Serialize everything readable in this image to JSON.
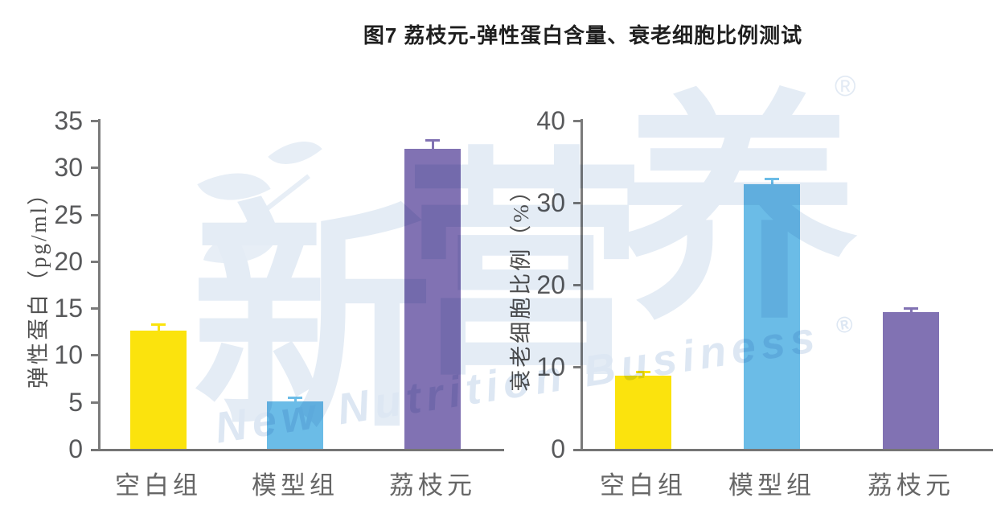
{
  "title": "图7 荔枝元-弹性蛋白含量、衰老细胞比例测试",
  "watermark": {
    "chars": [
      "新",
      "营",
      "养"
    ],
    "registered": "®",
    "subtitle": "New Nutrition Business",
    "logo_color": "#E4ECF5",
    "text_color": "#DDE7F3"
  },
  "chart_data": [
    {
      "type": "bar",
      "title": "",
      "ylabel": "弹性蛋白（pg/ml）",
      "xlabel": "",
      "categories": [
        "空白组",
        "模型组",
        "荔枝元"
      ],
      "values": [
        12.6,
        5.1,
        32.0
      ],
      "errors": [
        0.7,
        0.35,
        0.9
      ],
      "bar_colors": [
        "#FBE30D",
        "#6BBCE7",
        "#8172B3"
      ],
      "ylim": [
        0,
        35
      ],
      "yticks": [
        0,
        5,
        10,
        15,
        20,
        25,
        30,
        35
      ],
      "grid": false,
      "legend_position": "none"
    },
    {
      "type": "bar",
      "title": "",
      "ylabel": "衰老细胞比例（%）",
      "xlabel": "",
      "categories": [
        "空白组",
        "模型组",
        "荔枝元"
      ],
      "values": [
        8.9,
        32.3,
        16.7
      ],
      "errors": [
        0.5,
        0.6,
        0.5
      ],
      "bar_colors": [
        "#FBE30D",
        "#6BBCE7",
        "#8172B3"
      ],
      "ylim": [
        0,
        40
      ],
      "yticks": [
        0,
        10,
        20,
        30,
        40
      ],
      "grid": false,
      "legend_position": "none"
    }
  ],
  "colors": {
    "axis": "#7A7A7A",
    "baseline": "#757575",
    "tick_label": "#58595B",
    "category_label": "#666666",
    "axis_title": "#4F4F4F",
    "title_text": "#1F1F1F"
  }
}
